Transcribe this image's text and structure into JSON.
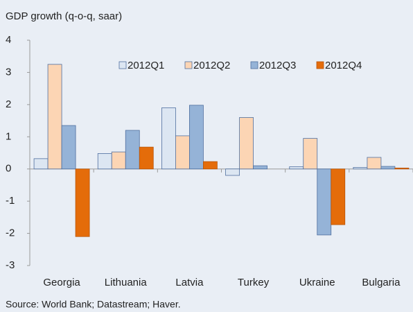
{
  "chart_data": {
    "type": "bar",
    "title": "GDP growth (q-o-q, saar)",
    "source": "Source: World Bank; Datastream; Haver.",
    "categories": [
      "Georgia",
      "Lithuania",
      "Latvia",
      "Turkey",
      "Ukraine",
      "Bulgaria"
    ],
    "series": [
      {
        "name": "2012Q1",
        "color": "#dce6f2",
        "values": [
          0.32,
          0.48,
          1.9,
          -0.2,
          0.07,
          0.05
        ]
      },
      {
        "name": "2012Q2",
        "color": "#fcd5b4",
        "values": [
          3.25,
          0.53,
          1.03,
          1.6,
          0.95,
          0.36
        ]
      },
      {
        "name": "2012Q3",
        "color": "#95b3d7",
        "values": [
          1.35,
          1.2,
          1.98,
          0.1,
          -2.05,
          0.08
        ]
      },
      {
        "name": "2012Q4",
        "color": "#e46c0a",
        "values": [
          -2.1,
          0.68,
          0.23,
          0,
          -1.73,
          0.03
        ]
      }
    ],
    "ylim": [
      -3,
      4
    ],
    "yticks": [
      -3,
      -2,
      -1,
      0,
      1,
      2,
      3,
      4
    ],
    "legend": "top-right"
  }
}
